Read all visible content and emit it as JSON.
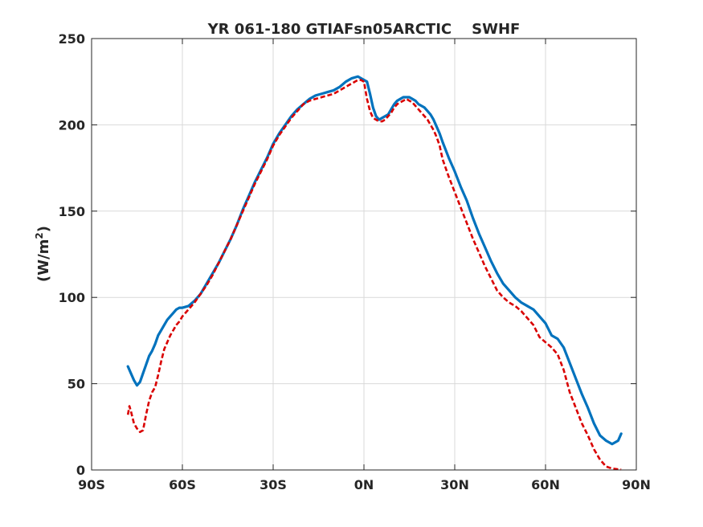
{
  "chart_data": {
    "type": "line",
    "title": "YR 061-180 GTIAFsn05ARCTIC    SWHF",
    "xlabel": "",
    "ylabel_main": "(W/m",
    "ylabel_sup": "2",
    "ylabel_close": ")",
    "xlim": [
      -90,
      90
    ],
    "ylim": [
      0,
      250
    ],
    "x_ticks": [
      -90,
      -60,
      -30,
      0,
      30,
      60,
      90
    ],
    "x_tick_labels": [
      "90S",
      "60S",
      "30S",
      "0N",
      "30N",
      "60N",
      "90N"
    ],
    "y_ticks": [
      0,
      50,
      100,
      150,
      200,
      250
    ],
    "y_tick_labels": [
      "0",
      "50",
      "100",
      "150",
      "200",
      "250"
    ],
    "grid": true,
    "series": [
      {
        "color": "#0072BD",
        "style": "solid",
        "x": [
          -78,
          -77,
          -76,
          -75,
          -74,
          -73,
          -72,
          -71,
          -70,
          -69,
          -68,
          -67,
          -66,
          -65,
          -64,
          -63,
          -62,
          -61,
          -60,
          -58,
          -56,
          -54,
          -52,
          -50,
          -48,
          -46,
          -44,
          -42,
          -40,
          -38,
          -36,
          -34,
          -32,
          -30,
          -28,
          -26,
          -24,
          -22,
          -20,
          -18,
          -16,
          -14,
          -12,
          -10,
          -8,
          -6,
          -4,
          -2,
          -1,
          0,
          1,
          2,
          3,
          4,
          5,
          6,
          7,
          8,
          9,
          10,
          11,
          12,
          13,
          14,
          15,
          16,
          17,
          18,
          19,
          20,
          21,
          22,
          23,
          24,
          25,
          26,
          28,
          30,
          32,
          34,
          36,
          38,
          40,
          42,
          44,
          46,
          48,
          50,
          52,
          54,
          56,
          58,
          60,
          62,
          64,
          66,
          68,
          70,
          72,
          74,
          76,
          78,
          80,
          82,
          84,
          85
        ],
        "y": [
          60,
          56,
          52,
          49,
          51,
          56,
          61,
          66,
          69,
          73,
          78,
          81,
          84,
          87,
          89,
          91,
          93,
          94,
          94,
          95,
          98,
          102,
          108,
          114,
          120,
          127,
          134,
          142,
          151,
          159,
          167,
          174,
          181,
          189,
          195,
          200,
          205,
          209,
          212,
          215,
          217,
          218,
          219,
          220,
          222,
          225,
          227,
          228,
          227,
          226,
          225,
          218,
          210,
          205,
          203,
          204,
          205,
          206,
          209,
          212,
          214,
          215,
          216,
          216,
          216,
          215,
          214,
          212,
          211,
          210,
          208,
          206,
          203,
          199,
          195,
          190,
          181,
          173,
          164,
          156,
          146,
          137,
          129,
          121,
          114,
          108,
          104,
          100,
          97,
          95,
          93,
          89,
          85,
          78,
          76,
          71,
          62,
          53,
          44,
          36,
          27,
          20,
          17,
          15,
          17,
          21
        ]
      },
      {
        "color": "#D90000",
        "style": "dashed",
        "x": [
          -78,
          -77.5,
          -77,
          -76,
          -75,
          -74,
          -73,
          -72,
          -71,
          -70,
          -69,
          -68,
          -67,
          -66,
          -65,
          -64,
          -63,
          -62,
          -61,
          -60,
          -58,
          -56,
          -54,
          -52,
          -50,
          -48,
          -46,
          -44,
          -42,
          -40,
          -38,
          -36,
          -34,
          -32,
          -30,
          -28,
          -26,
          -24,
          -22,
          -20,
          -18,
          -16,
          -14,
          -12,
          -10,
          -8,
          -6,
          -4,
          -2,
          -1,
          0,
          1,
          2,
          3,
          4,
          5,
          6,
          7,
          8,
          9,
          10,
          11,
          12,
          13,
          14,
          15,
          16,
          17,
          18,
          19,
          20,
          21,
          22,
          23,
          24,
          25,
          26,
          28,
          30,
          32,
          34,
          36,
          38,
          40,
          42,
          44,
          46,
          48,
          50,
          52,
          54,
          56,
          58,
          60,
          62,
          64,
          66,
          68,
          70,
          72,
          74,
          76,
          78,
          80,
          82,
          84,
          85
        ],
        "y": [
          32,
          37,
          34,
          27,
          24,
          22,
          23,
          32,
          40,
          45,
          48,
          55,
          63,
          70,
          74,
          78,
          81,
          84,
          86,
          89,
          93,
          97,
          102,
          107,
          113,
          120,
          127,
          134,
          142,
          150,
          158,
          166,
          173,
          180,
          188,
          194,
          199,
          204,
          208,
          212,
          214,
          215,
          216,
          217,
          218,
          220,
          222,
          224,
          226,
          226,
          225,
          215,
          208,
          204,
          203,
          202,
          202,
          203,
          205,
          207,
          210,
          212,
          213,
          214,
          215,
          214,
          213,
          211,
          209,
          207,
          205,
          203,
          200,
          197,
          193,
          188,
          180,
          170,
          161,
          152,
          143,
          134,
          126,
          118,
          111,
          104,
          100,
          97,
          95,
          92,
          88,
          84,
          77,
          74,
          71,
          67,
          58,
          45,
          36,
          27,
          20,
          12,
          6,
          2,
          0.8,
          0.4,
          0.3
        ]
      }
    ]
  }
}
